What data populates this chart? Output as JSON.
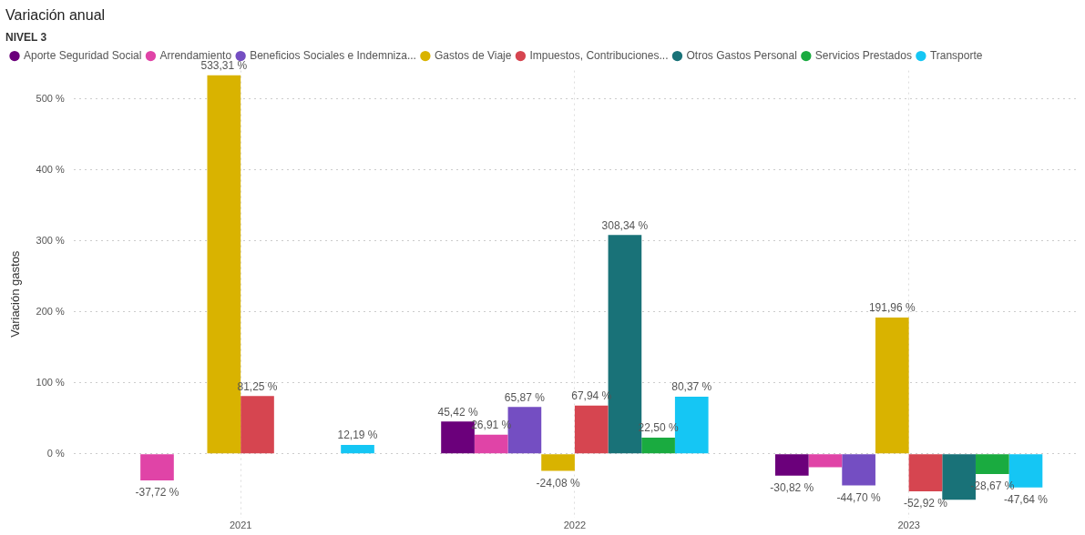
{
  "chart_data": {
    "type": "bar",
    "title": "Variación anual",
    "ylabel": "Variación gastos",
    "legend_title": "NIVEL 3",
    "legend": "top left",
    "grid": true,
    "categories": [
      "2021",
      "2022",
      "2023"
    ],
    "ylim": [
      -90,
      540
    ],
    "yticks": [
      {
        "value": 0,
        "label": "0 %"
      },
      {
        "value": 100,
        "label": "100 %"
      },
      {
        "value": 200,
        "label": "200 %"
      },
      {
        "value": 300,
        "label": "300 %"
      },
      {
        "value": 400,
        "label": "400 %"
      },
      {
        "value": 500,
        "label": "500 %"
      }
    ],
    "series": [
      {
        "name": "Aporte Seguridad Social",
        "color": "#6b007b",
        "values": [
          null,
          45.42,
          -30.82
        ],
        "value_labels": [
          null,
          "45,42 %",
          "-30,82 %"
        ]
      },
      {
        "name": "Arrendamiento",
        "color": "#e044a7",
        "values": [
          -37.72,
          26.91,
          -19
        ],
        "value_labels": [
          "-37,72 %",
          "26,91 %",
          null
        ]
      },
      {
        "name": "Beneficios Sociales e Indemniza...",
        "color": "#744ec2",
        "values": [
          null,
          65.87,
          -44.7
        ],
        "value_labels": [
          null,
          "65,87 %",
          "-44,70 %"
        ]
      },
      {
        "name": "Gastos de Viaje",
        "color": "#d9b300",
        "values": [
          533.31,
          -24.08,
          191.96
        ],
        "value_labels": [
          "533,31 %",
          "-24,08 %",
          "191,96 %"
        ]
      },
      {
        "name": "Impuestos, Contribuciones...",
        "color": "#d64550",
        "values": [
          81.25,
          67.94,
          -52.92
        ],
        "value_labels": [
          "81,25 %",
          "67,94 %",
          "-52,92 %"
        ]
      },
      {
        "name": "Otros Gastos Personal",
        "color": "#197278",
        "values": [
          null,
          308.34,
          -65
        ],
        "value_labels": [
          null,
          "308,34 %",
          null
        ]
      },
      {
        "name": "Servicios Prestados",
        "color": "#1aab40",
        "values": [
          null,
          22.5,
          -28.67
        ],
        "value_labels": [
          null,
          "22,50 %",
          "-28,67 %"
        ]
      },
      {
        "name": "Transporte",
        "color": "#15c6f4",
        "values": [
          12.19,
          80.37,
          -47.64
        ],
        "value_labels": [
          "12,19 %",
          "80,37 %",
          "-47,64 %"
        ]
      }
    ]
  }
}
